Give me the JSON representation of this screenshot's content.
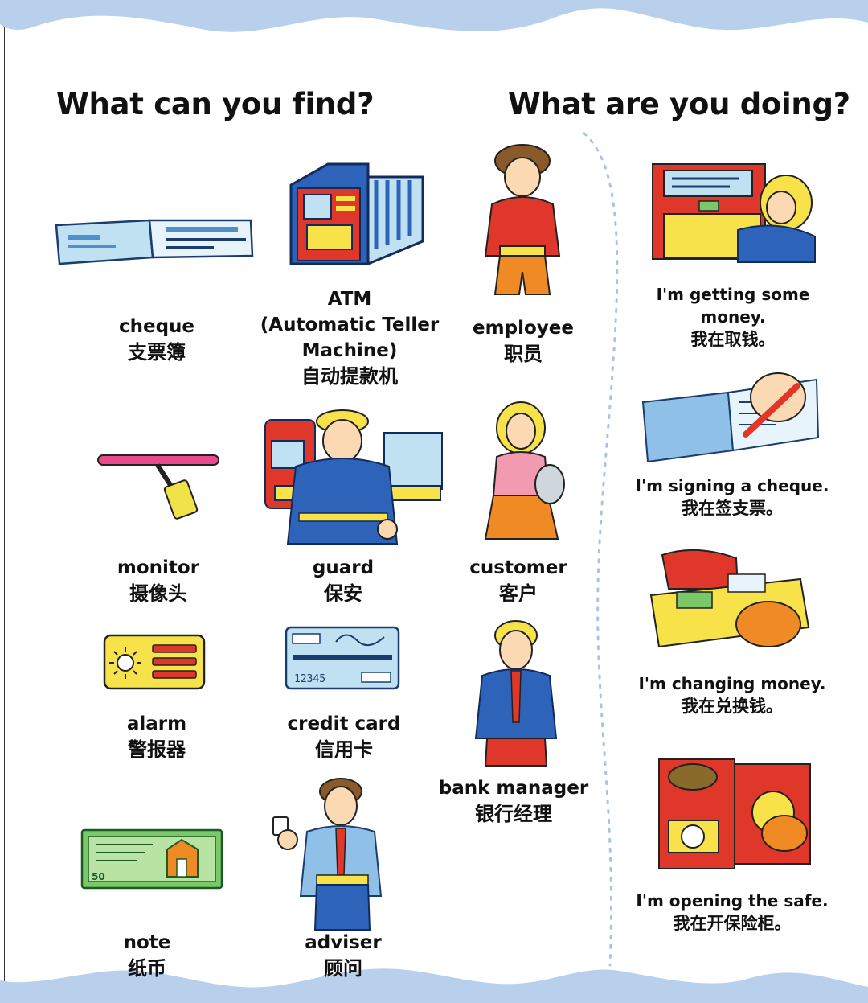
{
  "headings": {
    "find": "What can you find?",
    "doing": "What are you doing?"
  },
  "find_items": [
    {
      "id": "cheque",
      "en": "cheque",
      "zh": "支票簿",
      "icon": "cheque-book-icon"
    },
    {
      "id": "atm",
      "en_lines": [
        "ATM",
        "(Automatic Teller",
        "Machine)"
      ],
      "zh": "自动提款机",
      "icon": "atm-icon"
    },
    {
      "id": "employee",
      "en": "employee",
      "zh": "职员",
      "icon": "employee-figure"
    },
    {
      "id": "monitor",
      "en": "monitor",
      "zh": "摄像头",
      "icon": "security-camera-icon"
    },
    {
      "id": "guard",
      "en": "guard",
      "zh": "保安",
      "icon": "guard-figure"
    },
    {
      "id": "customer",
      "en": "customer",
      "zh": "客户",
      "icon": "customer-figure"
    },
    {
      "id": "alarm",
      "en": "alarm",
      "zh": "警报器",
      "icon": "alarm-icon"
    },
    {
      "id": "credit-card",
      "en": "credit card",
      "zh": "信用卡",
      "icon": "credit-card-icon"
    },
    {
      "id": "bank-manager",
      "en": "bank manager",
      "zh": "银行经理",
      "icon": "bank-manager-figure"
    },
    {
      "id": "note",
      "en": "note",
      "zh": "纸币",
      "icon": "banknote-icon"
    },
    {
      "id": "adviser",
      "en": "adviser",
      "zh": "顾问",
      "icon": "adviser-figure"
    }
  ],
  "card_details": {
    "card_number": "12345",
    "note_value": "50"
  },
  "doing_items": [
    {
      "id": "getting-money",
      "en_lines": [
        "I'm getting some",
        "money."
      ],
      "zh": "我在取钱。",
      "icon": "atm-withdrawal-scene"
    },
    {
      "id": "signing-cheque",
      "en_lines": [
        "I'm signing a cheque."
      ],
      "zh": "我在签支票。",
      "icon": "signing-cheque-scene"
    },
    {
      "id": "changing-money",
      "en_lines": [
        "I'm changing money."
      ],
      "zh": "我在兑换钱。",
      "icon": "changing-money-scene"
    },
    {
      "id": "opening-safe",
      "en_lines": [
        "I'm opening the safe."
      ],
      "zh": "我在开保险柜。",
      "icon": "opening-safe-scene"
    }
  ],
  "colors": {
    "wave": "#b9d0ec",
    "divider_dots": "#a9c3e6",
    "blue": "#2d63b8",
    "red": "#e0372b",
    "yellow": "#f7e24a",
    "orange": "#f08a24",
    "light_blue": "#bfe1f2"
  }
}
